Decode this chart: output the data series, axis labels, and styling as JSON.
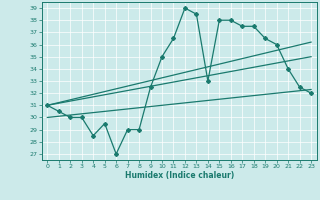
{
  "xlabel": "Humidex (Indice chaleur)",
  "ylabel": "",
  "bg_color": "#cceaea",
  "line_color": "#1a7a6e",
  "grid_color": "#ffffff",
  "xlim": [
    -0.5,
    23.5
  ],
  "ylim": [
    26.5,
    39.5
  ],
  "yticks": [
    27,
    28,
    29,
    30,
    31,
    32,
    33,
    34,
    35,
    36,
    37,
    38,
    39
  ],
  "xticks": [
    0,
    1,
    2,
    3,
    4,
    5,
    6,
    7,
    8,
    9,
    10,
    11,
    12,
    13,
    14,
    15,
    16,
    17,
    18,
    19,
    20,
    21,
    22,
    23
  ],
  "main_line_x": [
    0,
    1,
    2,
    3,
    4,
    5,
    6,
    7,
    8,
    9,
    10,
    11,
    12,
    13,
    14,
    15,
    16,
    17,
    18,
    19,
    20,
    21,
    22,
    23
  ],
  "main_line_y": [
    31,
    30.5,
    30,
    30,
    28.5,
    29.5,
    27,
    29,
    29,
    32.5,
    35,
    36.5,
    39,
    38.5,
    33,
    38,
    38,
    37.5,
    37.5,
    36.5,
    36,
    34,
    32.5,
    32
  ],
  "reg_line1_x": [
    0,
    23
  ],
  "reg_line1_y": [
    31.0,
    36.2
  ],
  "reg_line2_x": [
    0,
    23
  ],
  "reg_line2_y": [
    31.0,
    35.0
  ],
  "reg_line3_x": [
    0,
    23
  ],
  "reg_line3_y": [
    30.0,
    32.3
  ]
}
